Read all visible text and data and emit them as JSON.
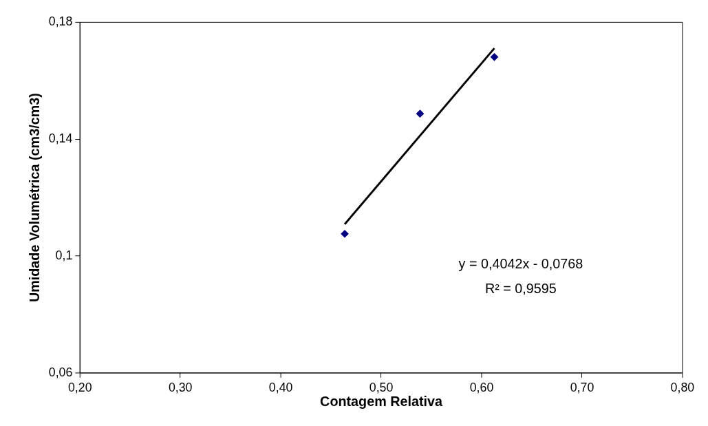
{
  "chart_data": {
    "type": "scatter",
    "xlabel": "Contagem Relativa",
    "ylabel": "Umidade Volumétrica (cm3/cm3)",
    "series": [
      {
        "type": "scatter",
        "color": "#000080",
        "x": [
          0.464,
          0.539,
          0.613
        ],
        "values": [
          0.1075,
          0.1486,
          0.168
        ],
        "marker": "diamond"
      },
      {
        "type": "line",
        "color": "#000000",
        "x": [
          0.464,
          0.613
        ],
        "values": [
          0.1108,
          0.171
        ],
        "marker": "none",
        "line_style": "solid"
      }
    ],
    "annotations": [
      "y = 0,4042x - 0,0768",
      "R² = 0,9595"
    ],
    "xlim": [
      0.2,
      0.8
    ],
    "xticks": [
      {
        "value": 0.2,
        "label": "0,20"
      },
      {
        "value": 0.3,
        "label": "0,30"
      },
      {
        "value": 0.4,
        "label": "0,40"
      },
      {
        "value": 0.5,
        "label": "0,50"
      },
      {
        "value": 0.6,
        "label": "0,60"
      },
      {
        "value": 0.7,
        "label": "0,70"
      },
      {
        "value": 0.8,
        "label": "0,80"
      }
    ],
    "ylim": [
      0.06,
      0.18
    ],
    "yticks": [
      {
        "value": 0.06,
        "label": "0,06"
      },
      {
        "value": 0.1,
        "label": "0,1"
      },
      {
        "value": 0.14,
        "label": "0,14"
      },
      {
        "value": 0.18,
        "label": "0,18"
      }
    ],
    "grid": false
  }
}
